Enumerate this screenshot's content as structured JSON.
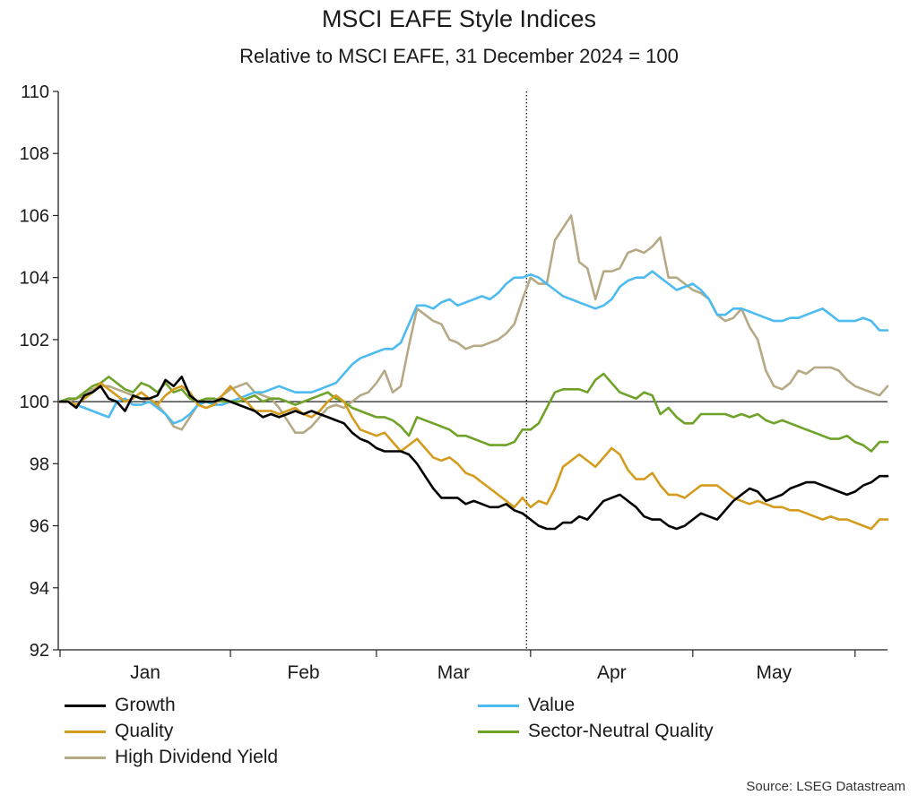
{
  "chart_data": {
    "type": "line",
    "title": "MSCI EAFE Style Indices",
    "subtitle": "Relative to MSCI EAFE, 31 December 2024 = 100",
    "source": "Source: LSEG Datastream",
    "ylim": [
      92,
      110
    ],
    "yticks": [
      92,
      94,
      96,
      98,
      100,
      102,
      104,
      106,
      108,
      110
    ],
    "xlim": [
      0,
      102
    ],
    "x_tick_marks": [
      0,
      21,
      39,
      58,
      78,
      98
    ],
    "x_labels": [
      {
        "label": "Jan",
        "at": 10.5
      },
      {
        "label": "Feb",
        "at": 30
      },
      {
        "label": "Mar",
        "at": 48.5
      },
      {
        "label": "Apr",
        "at": 68
      },
      {
        "label": "May",
        "at": 88
      }
    ],
    "reference_line": 100,
    "vertical_marker": 57.5,
    "series": [
      {
        "name": "Growth",
        "color": "#000000",
        "values": [
          100.0,
          100.0,
          99.8,
          100.2,
          100.3,
          100.5,
          100.1,
          100.0,
          99.7,
          100.2,
          100.1,
          100.1,
          100.2,
          100.7,
          100.5,
          100.8,
          100.2,
          100.0,
          100.0,
          100.0,
          100.1,
          100.0,
          99.9,
          99.8,
          99.7,
          99.5,
          99.6,
          99.5,
          99.6,
          99.7,
          99.6,
          99.7,
          99.6,
          99.5,
          99.4,
          99.3,
          99.0,
          98.8,
          98.7,
          98.5,
          98.4,
          98.4,
          98.4,
          98.3,
          98.0,
          97.6,
          97.2,
          96.9,
          96.9,
          96.9,
          96.7,
          96.8,
          96.7,
          96.6,
          96.6,
          96.7,
          96.5,
          96.4,
          96.2,
          96.0,
          95.9,
          95.9,
          96.1,
          96.1,
          96.3,
          96.2,
          96.5,
          96.8,
          96.9,
          97.0,
          96.8,
          96.6,
          96.3,
          96.2,
          96.2,
          96.0,
          95.9,
          96.0,
          96.2,
          96.4,
          96.3,
          96.2,
          96.5,
          96.8,
          97.0,
          97.2,
          97.1,
          96.8,
          96.9,
          97.0,
          97.2,
          97.3,
          97.4,
          97.4,
          97.3,
          97.2,
          97.1,
          97.0,
          97.1,
          97.3,
          97.4,
          97.6,
          97.6
        ]
      },
      {
        "name": "Value",
        "color": "#4dbbf0",
        "values": [
          100.0,
          100.0,
          99.9,
          99.8,
          99.7,
          99.6,
          99.5,
          100.0,
          100.1,
          99.9,
          99.9,
          100.0,
          99.8,
          99.6,
          99.3,
          99.4,
          99.6,
          99.9,
          100.0,
          99.9,
          99.9,
          100.0,
          100.1,
          100.2,
          100.3,
          100.3,
          100.4,
          100.5,
          100.4,
          100.3,
          100.3,
          100.3,
          100.4,
          100.5,
          100.6,
          100.9,
          101.2,
          101.4,
          101.5,
          101.6,
          101.7,
          101.7,
          101.9,
          102.5,
          103.1,
          103.1,
          103.0,
          103.2,
          103.3,
          103.1,
          103.2,
          103.3,
          103.4,
          103.3,
          103.5,
          103.8,
          104.0,
          104.0,
          104.1,
          104.0,
          103.8,
          103.6,
          103.4,
          103.3,
          103.2,
          103.1,
          103.0,
          103.1,
          103.3,
          103.7,
          103.9,
          104.0,
          104.0,
          104.2,
          104.0,
          103.8,
          103.6,
          103.7,
          103.8,
          103.6,
          103.3,
          102.8,
          102.8,
          103.0,
          103.0,
          102.9,
          102.8,
          102.7,
          102.6,
          102.6,
          102.7,
          102.7,
          102.8,
          102.9,
          103.0,
          102.8,
          102.6,
          102.6,
          102.6,
          102.7,
          102.6,
          102.3,
          102.3
        ]
      },
      {
        "name": "Quality",
        "color": "#d49c1e",
        "values": [
          100.0,
          100.0,
          99.9,
          100.1,
          100.3,
          100.6,
          100.4,
          100.2,
          100.0,
          100.1,
          100.3,
          100.1,
          99.9,
          100.2,
          100.4,
          100.5,
          100.3,
          99.9,
          99.8,
          99.9,
          100.2,
          100.5,
          100.2,
          100.0,
          99.7,
          99.7,
          99.7,
          99.6,
          99.7,
          99.8,
          99.6,
          99.5,
          99.7,
          100.0,
          100.2,
          100.0,
          99.5,
          99.1,
          99.0,
          98.9,
          99.0,
          98.7,
          98.4,
          98.6,
          98.8,
          98.5,
          98.2,
          98.1,
          98.2,
          98.0,
          97.7,
          97.6,
          97.4,
          97.2,
          97.0,
          96.8,
          96.6,
          96.9,
          96.6,
          96.8,
          96.7,
          97.2,
          97.9,
          98.1,
          98.3,
          98.1,
          97.9,
          98.2,
          98.5,
          98.3,
          97.8,
          97.5,
          97.5,
          97.7,
          97.3,
          97.0,
          97.0,
          96.9,
          97.1,
          97.3,
          97.3,
          97.3,
          97.1,
          96.9,
          96.8,
          96.7,
          96.8,
          96.7,
          96.6,
          96.6,
          96.5,
          96.5,
          96.4,
          96.3,
          96.2,
          96.3,
          96.2,
          96.2,
          96.1,
          96.0,
          95.9,
          96.2,
          96.2
        ]
      },
      {
        "name": "Sector-Neutral Quality",
        "color": "#6fa229",
        "values": [
          100.0,
          100.1,
          100.1,
          100.3,
          100.5,
          100.6,
          100.8,
          100.6,
          100.4,
          100.3,
          100.6,
          100.5,
          100.3,
          100.6,
          100.3,
          100.4,
          100.1,
          100.0,
          100.1,
          100.1,
          100.0,
          100.0,
          100.0,
          100.1,
          100.2,
          100.0,
          100.1,
          100.1,
          100.0,
          99.9,
          100.0,
          100.1,
          100.2,
          100.3,
          100.1,
          100.0,
          99.8,
          99.7,
          99.6,
          99.5,
          99.5,
          99.4,
          99.2,
          98.9,
          99.5,
          99.4,
          99.3,
          99.2,
          99.1,
          98.9,
          98.9,
          98.8,
          98.7,
          98.6,
          98.6,
          98.6,
          98.7,
          99.1,
          99.1,
          99.3,
          99.8,
          100.3,
          100.4,
          100.4,
          100.4,
          100.3,
          100.7,
          100.9,
          100.6,
          100.3,
          100.2,
          100.1,
          100.3,
          100.2,
          99.6,
          99.8,
          99.5,
          99.3,
          99.3,
          99.6,
          99.6,
          99.6,
          99.6,
          99.5,
          99.6,
          99.5,
          99.6,
          99.4,
          99.3,
          99.4,
          99.3,
          99.2,
          99.1,
          99.0,
          98.9,
          98.8,
          98.8,
          98.9,
          98.7,
          98.6,
          98.4,
          98.7,
          98.7
        ]
      },
      {
        "name": "High Dividend Yield",
        "color": "#b5a986",
        "values": [
          100.0,
          100.0,
          100.1,
          100.2,
          100.4,
          100.5,
          100.5,
          100.4,
          100.3,
          100.2,
          100.1,
          100.0,
          99.9,
          99.6,
          99.2,
          99.1,
          99.5,
          99.9,
          100.0,
          100.0,
          100.2,
          100.4,
          100.5,
          100.6,
          100.3,
          100.2,
          100.1,
          99.8,
          99.4,
          99.0,
          99.0,
          99.2,
          99.5,
          99.8,
          99.9,
          99.8,
          100.0,
          100.2,
          100.3,
          100.6,
          101.0,
          100.3,
          100.5,
          101.8,
          103.0,
          102.8,
          102.6,
          102.5,
          102.0,
          101.9,
          101.7,
          101.8,
          101.8,
          101.9,
          102.0,
          102.2,
          102.5,
          103.3,
          104.0,
          103.8,
          103.8,
          105.2,
          105.6,
          106.0,
          104.5,
          104.3,
          103.3,
          104.2,
          104.2,
          104.3,
          104.8,
          104.9,
          104.8,
          105.0,
          105.3,
          104.0,
          104.0,
          103.8,
          103.6,
          103.5,
          103.3,
          102.8,
          102.6,
          102.7,
          103.0,
          102.4,
          102.0,
          101.0,
          100.5,
          100.4,
          100.6,
          101.0,
          100.9,
          101.1,
          101.1,
          101.1,
          101.0,
          100.7,
          100.5,
          100.4,
          100.3,
          100.2,
          100.5
        ]
      }
    ]
  }
}
